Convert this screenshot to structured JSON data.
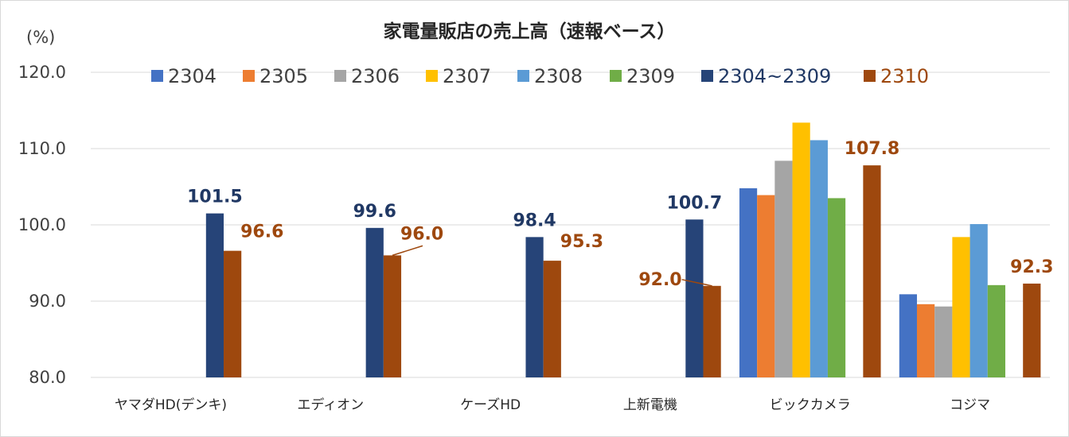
{
  "chart_data": {
    "type": "bar",
    "title": "家電量販店の売上高（速報ベース）",
    "ylabel": "(%)",
    "xlabel": "",
    "ylim": [
      80,
      120
    ],
    "yticks": [
      "80.0",
      "90.0",
      "100.0",
      "110.0",
      "120.0"
    ],
    "ytick_values": [
      80,
      90,
      100,
      110,
      120
    ],
    "grid": true,
    "legend_position": "top",
    "categories": [
      "ヤマダHD(デンキ)",
      "エディオン",
      "ケーズHD",
      "上新電機",
      "ビックカメラ",
      "コジマ"
    ],
    "series": [
      {
        "name": "2304",
        "color": "#4472C4",
        "values": [
          null,
          null,
          null,
          null,
          104.8,
          90.9
        ]
      },
      {
        "name": "2305",
        "color": "#ED7D31",
        "values": [
          null,
          null,
          null,
          null,
          103.9,
          89.6
        ]
      },
      {
        "name": "2306",
        "color": "#A5A5A5",
        "values": [
          null,
          null,
          null,
          null,
          108.4,
          89.3
        ]
      },
      {
        "name": "2307",
        "color": "#FFC000",
        "values": [
          null,
          null,
          null,
          null,
          113.4,
          98.4
        ]
      },
      {
        "name": "2308",
        "color": "#5B9BD5",
        "values": [
          null,
          null,
          null,
          null,
          111.1,
          100.1
        ]
      },
      {
        "name": "2309",
        "color": "#70AD47",
        "values": [
          null,
          null,
          null,
          null,
          103.5,
          92.1
        ]
      },
      {
        "name": "2304~2309",
        "color": "#264478",
        "values": [
          101.5,
          99.6,
          98.4,
          100.7,
          null,
          null
        ]
      },
      {
        "name": "2310",
        "color": "#9E480E",
        "values": [
          96.6,
          96.0,
          95.3,
          92.0,
          107.8,
          92.3
        ]
      }
    ],
    "data_labels": [
      {
        "series": "2304~2309",
        "category": "ヤマダHD(デンキ)",
        "text": "101.5"
      },
      {
        "series": "2310",
        "category": "ヤマダHD(デンキ)",
        "text": "96.6"
      },
      {
        "series": "2304~2309",
        "category": "エディオン",
        "text": "99.6"
      },
      {
        "series": "2310",
        "category": "エディオン",
        "text": "96.0"
      },
      {
        "series": "2304~2309",
        "category": "ケーズHD",
        "text": "98.4"
      },
      {
        "series": "2310",
        "category": "ケーズHD",
        "text": "95.3"
      },
      {
        "series": "2304~2309",
        "category": "上新電機",
        "text": "100.7"
      },
      {
        "series": "2310",
        "category": "上新電機",
        "text": "92.0"
      },
      {
        "series": "2310",
        "category": "ビックカメラ",
        "text": "107.8"
      },
      {
        "series": "2310",
        "category": "コジマ",
        "text": "92.3"
      }
    ]
  }
}
